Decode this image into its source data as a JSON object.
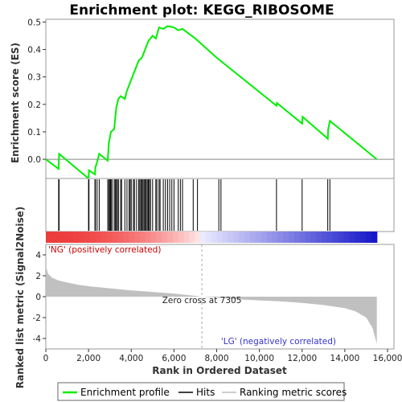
{
  "chart_data": {
    "type": "line",
    "title": "Enrichment plot: KEGG_RIBOSOME",
    "es_panel": {
      "ylabel": "Enrichment score (ES)",
      "ylim": [
        -0.07,
        0.51
      ],
      "yticks": [
        "0.0",
        "0.1",
        "0.2",
        "0.3",
        "0.4",
        "0.5"
      ],
      "ytick_values": [
        0.0,
        0.1,
        0.2,
        0.3,
        0.4,
        0.5
      ],
      "line_color": "#00ee00",
      "es_profile": [
        [
          0,
          0.0
        ],
        [
          600,
          -0.035
        ],
        [
          620,
          0.02
        ],
        [
          2000,
          -0.07
        ],
        [
          2020,
          -0.04
        ],
        [
          2300,
          -0.055
        ],
        [
          2320,
          -0.03
        ],
        [
          2400,
          -0.01
        ],
        [
          2500,
          0.02
        ],
        [
          2900,
          -0.005
        ],
        [
          2950,
          0.06
        ],
        [
          3000,
          0.08
        ],
        [
          3050,
          0.1
        ],
        [
          3200,
          0.11
        ],
        [
          3300,
          0.19
        ],
        [
          3400,
          0.22
        ],
        [
          3500,
          0.23
        ],
        [
          3700,
          0.22
        ],
        [
          3800,
          0.25
        ],
        [
          3950,
          0.28
        ],
        [
          4100,
          0.31
        ],
        [
          4250,
          0.34
        ],
        [
          4350,
          0.36
        ],
        [
          4500,
          0.37
        ],
        [
          4650,
          0.4
        ],
        [
          4800,
          0.43
        ],
        [
          5000,
          0.45
        ],
        [
          5150,
          0.44
        ],
        [
          5300,
          0.48
        ],
        [
          5500,
          0.475
        ],
        [
          5700,
          0.485
        ],
        [
          6000,
          0.48
        ],
        [
          6200,
          0.47
        ],
        [
          6400,
          0.475
        ],
        [
          7000,
          0.44
        ],
        [
          8000,
          0.37
        ],
        [
          10800,
          0.195
        ],
        [
          10820,
          0.205
        ],
        [
          12000,
          0.13
        ],
        [
          12020,
          0.155
        ],
        [
          13200,
          0.075
        ],
        [
          13220,
          0.11
        ],
        [
          13300,
          0.14
        ],
        [
          15500,
          0.0
        ]
      ]
    },
    "hits": [
      600,
      620,
      2000,
      2020,
      2300,
      2320,
      2400,
      2500,
      2900,
      2950,
      3000,
      3020,
      3050,
      3100,
      3200,
      3250,
      3300,
      3350,
      3400,
      3500,
      3550,
      3700,
      3800,
      3900,
      3950,
      4000,
      4100,
      4150,
      4250,
      4350,
      4400,
      4450,
      4500,
      4550,
      4600,
      4650,
      4700,
      4750,
      4800,
      4850,
      4900,
      5000,
      5150,
      5200,
      5300,
      5350,
      5500,
      5600,
      5700,
      5800,
      5900,
      6000,
      6200,
      6300,
      6400,
      6900,
      7100,
      8100,
      8200,
      10800,
      12000,
      13200,
      13300
    ],
    "metric_panel": {
      "ylabel": "Ranked list metric (Signal2Noise)",
      "ylim": [
        -5,
        5
      ],
      "yticks": [
        "4",
        "2",
        "0",
        "-2",
        "-4"
      ],
      "ytick_values": [
        4,
        2,
        0,
        -2,
        -4
      ],
      "zero_cross_label": "Zero cross at 7305",
      "zero_cross_rank": 7305,
      "pos_label": "'NG' (positively correlated)",
      "neg_label": "'LG' (negatively correlated)",
      "pos_color": "#cc0000",
      "neg_color": "#3333cc",
      "metric_curve": [
        [
          0,
          3.0
        ],
        [
          100,
          2.2
        ],
        [
          300,
          1.8
        ],
        [
          600,
          1.55
        ],
        [
          1000,
          1.35
        ],
        [
          1500,
          1.15
        ],
        [
          2000,
          1.0
        ],
        [
          3000,
          0.8
        ],
        [
          4000,
          0.6
        ],
        [
          5000,
          0.45
        ],
        [
          6000,
          0.3
        ],
        [
          7000,
          0.08
        ],
        [
          7305,
          0.0
        ],
        [
          8000,
          -0.1
        ],
        [
          9000,
          -0.25
        ],
        [
          10000,
          -0.35
        ],
        [
          11000,
          -0.45
        ],
        [
          12000,
          -0.6
        ],
        [
          13000,
          -0.8
        ],
        [
          14000,
          -1.1
        ],
        [
          14500,
          -1.4
        ],
        [
          15000,
          -2.0
        ],
        [
          15300,
          -3.0
        ],
        [
          15500,
          -4.5
        ]
      ]
    },
    "xlabel": "Rank in Ordered Dataset",
    "xlim": [
      0,
      16300
    ],
    "xticks": [
      "0",
      "2,000",
      "4,000",
      "6,000",
      "8,000",
      "10,000",
      "12,000",
      "14,000",
      "16,000"
    ],
    "xtick_values": [
      0,
      2000,
      4000,
      6000,
      8000,
      10000,
      12000,
      14000,
      16000
    ],
    "legend": {
      "items": [
        "Enrichment profile",
        "Hits",
        "Ranking metric scores"
      ]
    }
  }
}
